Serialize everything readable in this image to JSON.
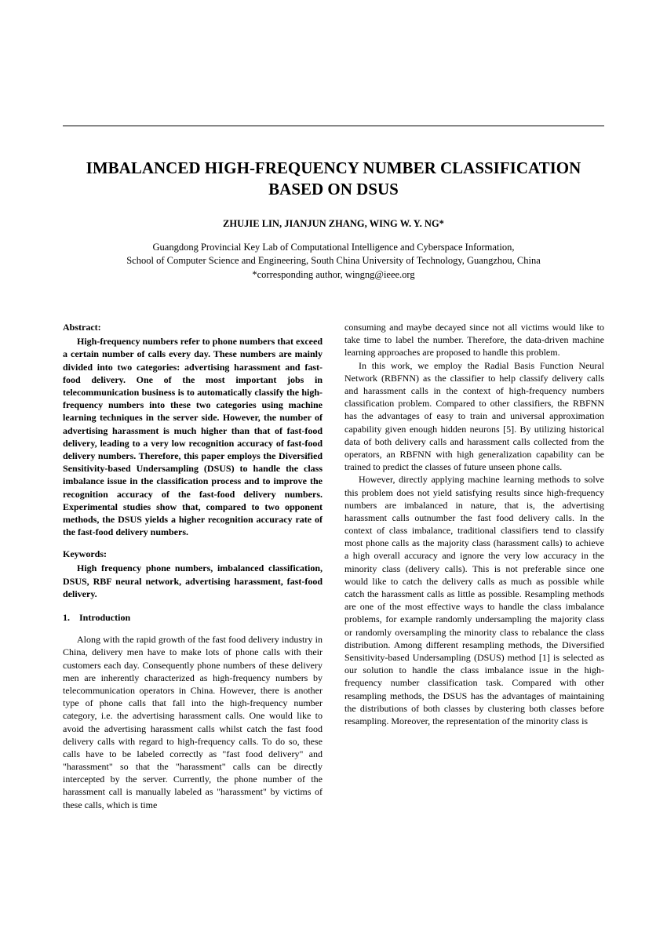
{
  "title": "IMBALANCED HIGH-FREQUENCY NUMBER CLASSIFICATION BASED ON DSUS",
  "authors": "ZHUJIE LIN, JIANJUN ZHANG, WING W. Y. NG*",
  "affiliation_line1": "Guangdong Provincial Key Lab of Computational Intelligence and Cyberspace Information,",
  "affiliation_line2": "School of Computer Science and Engineering, South China University of Technology, Guangzhou, China",
  "affiliation_line3": "*corresponding author, wingng@ieee.org",
  "abstract_heading": "Abstract:",
  "abstract_body": "High-frequency numbers refer to phone numbers that exceed a certain number of calls every day. These numbers are mainly divided into two categories: advertising harassment and fast-food delivery. One of the most important jobs in telecommunication business is to automatically classify the high-frequency numbers into these two categories using machine learning techniques in the server side. However, the number of advertising harassment is much higher than that of fast-food delivery, leading to a very low recognition accuracy of fast-food delivery numbers. Therefore, this paper employs the Diversified Sensitivity-based Undersampling (DSUS) to handle the class imbalance issue in the classification process and to improve the recognition accuracy of the fast-food delivery numbers. Experimental studies show that, compared to two opponent methods, the DSUS yields a higher recognition accuracy rate of the fast-food delivery numbers.",
  "keywords_heading": "Keywords:",
  "keywords_body": "High frequency phone numbers, imbalanced classification, DSUS, RBF neural network, advertising harassment, fast-food delivery.",
  "section1_heading": "1. Introduction",
  "col1_para1": "Along with the rapid growth of the fast food delivery industry in China, delivery men have to make lots of phone calls with their customers each day. Consequently phone numbers of these delivery men are inherently characterized as high-frequency numbers by telecommunication operators in China. However, there is another type of phone calls that fall into the high-frequency number category, i.e. the advertising harassment calls. One would like to avoid the advertising harassment calls whilst catch the fast food delivery calls with regard to high-frequency calls. To do so, these calls have to be labeled correctly as \"fast food delivery\" and \"harassment\" so that the \"harassment\" calls can be directly intercepted by the server. Currently, the phone number of the harassment call is manually labeled as \"harassment\" by victims of these calls, which is time",
  "col2_para1": "consuming and maybe decayed since not all victims would like to take time to label the number. Therefore, the data-driven machine learning approaches are proposed to handle this problem.",
  "col2_para2": "In this work, we employ the Radial Basis Function Neural Network (RBFNN) as the classifier to help classify delivery calls and harassment calls in the context of high-frequency numbers classification problem. Compared to other classifiers, the RBFNN has the advantages of easy to train and universal approximation capability given enough hidden neurons [5]. By utilizing historical data of both delivery calls and harassment calls collected from the operators, an RBFNN with high generalization capability can be trained to predict the classes of future unseen phone calls.",
  "col2_para3": "However, directly applying machine learning methods to solve this problem does not yield satisfying results since high-frequency numbers are imbalanced in nature, that is, the advertising harassment calls outnumber the fast food delivery calls. In the context of class imbalance, traditional classifiers tend to classify most phone calls as the majority class (harassment calls) to achieve a high overall accuracy and ignore the very low accuracy in the minority class (delivery calls). This is not preferable since one would like to catch the delivery calls as much as possible while catch the harassment calls as little as possible. Resampling methods are one of the most effective ways to handle the class imbalance problems, for example randomly undersampling the majority class or randomly oversampling the minority class to rebalance the class distribution. Among different resampling methods, the Diversified Sensitivity-based Undersampling (DSUS) method [1] is selected as our solution to handle the class imbalance issue in the high-frequency number classification task. Compared with other resampling methods, the DSUS has the advantages of maintaining the distributions of both classes by clustering both classes before resampling. Moreover, the representation of the minority class is"
}
